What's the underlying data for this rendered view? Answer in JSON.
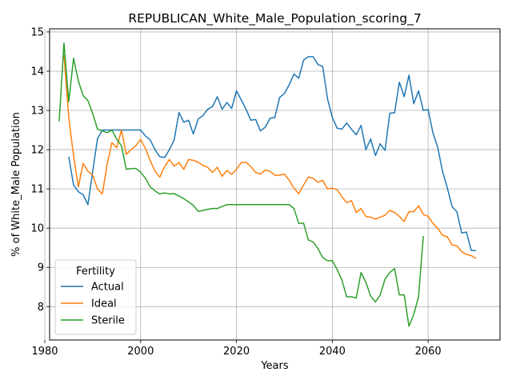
{
  "chart_data": {
    "type": "line",
    "title": "REPUBLICAN_White_Male_Population_scoring_7",
    "xlabel": "Years",
    "ylabel": "% of White_Male Population",
    "xlim": [
      1981,
      2075
    ],
    "ylim": [
      7.15,
      15.08
    ],
    "xticks": [
      1980,
      2000,
      2020,
      2040,
      2060
    ],
    "yticks": [
      8,
      9,
      10,
      11,
      12,
      13,
      14,
      15
    ],
    "grid": true,
    "legend": {
      "title": "Fertility",
      "placement": "lower-left"
    },
    "series": [
      {
        "name": "Actual",
        "color": "#1f77b4",
        "x": [
          1985,
          1986,
          1987,
          1988,
          1989,
          1990,
          1991,
          1992,
          1993,
          1994,
          1995,
          1996,
          1997,
          1998,
          1999,
          2000,
          2001,
          2002,
          2003,
          2004,
          2005,
          2006,
          2007,
          2008,
          2009,
          2010,
          2011,
          2012,
          2013,
          2014,
          2015,
          2016,
          2017,
          2018,
          2019,
          2020,
          2021,
          2022,
          2023,
          2024,
          2025,
          2026,
          2027,
          2028,
          2029,
          2030,
          2031,
          2032,
          2033,
          2034,
          2035,
          2036,
          2037,
          2038,
          2039,
          2040,
          2041,
          2042,
          2043,
          2044,
          2045,
          2046,
          2047,
          2048,
          2049,
          2050,
          2051,
          2052,
          2053,
          2054,
          2055,
          2056,
          2057,
          2058,
          2059,
          2060,
          2061,
          2062,
          2063,
          2064,
          2065,
          2066,
          2067,
          2068,
          2069,
          2070
        ],
        "values": [
          11.82,
          11.1,
          10.93,
          10.85,
          10.6,
          11.45,
          12.28,
          12.5,
          12.5,
          12.5,
          12.5,
          12.5,
          12.5,
          12.5,
          12.5,
          12.5,
          12.35,
          12.25,
          12.0,
          11.82,
          11.8,
          12.0,
          12.25,
          12.95,
          12.7,
          12.75,
          12.4,
          12.78,
          12.87,
          13.03,
          13.1,
          13.35,
          13.03,
          13.2,
          13.05,
          13.5,
          13.27,
          13.03,
          12.75,
          12.77,
          12.48,
          12.57,
          12.8,
          12.82,
          13.33,
          13.43,
          13.65,
          13.93,
          13.82,
          14.28,
          14.37,
          14.37,
          14.17,
          14.12,
          13.3,
          12.82,
          12.55,
          12.52,
          12.68,
          12.52,
          12.38,
          12.62,
          12.0,
          12.27,
          11.85,
          12.15,
          11.98,
          12.93,
          12.94,
          13.72,
          13.35,
          13.9,
          13.17,
          13.5,
          13.0,
          13.02,
          12.43,
          12.06,
          11.45,
          11.03,
          10.55,
          10.42,
          9.88,
          9.9,
          9.43,
          9.43
        ]
      },
      {
        "name": "Ideal",
        "color": "#ff7f0e",
        "x": [
          1984,
          1985,
          1986,
          1987,
          1988,
          1989,
          1990,
          1991,
          1992,
          1993,
          1994,
          1995,
          1996,
          1997,
          1998,
          1999,
          2000,
          2001,
          2002,
          2003,
          2004,
          2005,
          2006,
          2007,
          2008,
          2009,
          2010,
          2011,
          2012,
          2013,
          2014,
          2015,
          2016,
          2017,
          2018,
          2019,
          2020,
          2021,
          2022,
          2023,
          2024,
          2025,
          2026,
          2027,
          2028,
          2029,
          2030,
          2031,
          2032,
          2033,
          2034,
          2035,
          2036,
          2037,
          2038,
          2039,
          2040,
          2041,
          2042,
          2043,
          2044,
          2045,
          2046,
          2047,
          2048,
          2049,
          2050,
          2051,
          2052,
          2053,
          2054,
          2055,
          2056,
          2057,
          2058,
          2059,
          2060,
          2061,
          2062,
          2063,
          2064,
          2065,
          2066,
          2067,
          2068,
          2069,
          2070
        ],
        "values": [
          14.42,
          12.8,
          11.85,
          11.05,
          11.65,
          11.45,
          11.35,
          11.0,
          10.87,
          11.62,
          12.18,
          12.05,
          12.5,
          11.88,
          12.0,
          12.1,
          12.26,
          12.03,
          11.72,
          11.45,
          11.3,
          11.57,
          11.75,
          11.58,
          11.67,
          11.5,
          11.75,
          11.73,
          11.68,
          11.6,
          11.55,
          11.42,
          11.55,
          11.32,
          11.47,
          11.37,
          11.5,
          11.67,
          11.68,
          11.57,
          11.42,
          11.38,
          11.48,
          11.45,
          11.35,
          11.35,
          11.38,
          11.22,
          11.02,
          10.88,
          11.1,
          11.3,
          11.27,
          11.17,
          11.22,
          11.0,
          11.02,
          10.98,
          10.8,
          10.65,
          10.7,
          10.4,
          10.5,
          10.3,
          10.28,
          10.23,
          10.28,
          10.33,
          10.45,
          10.4,
          10.3,
          10.17,
          10.42,
          10.42,
          10.57,
          10.35,
          10.3,
          10.12,
          10.0,
          9.82,
          9.78,
          9.57,
          9.55,
          9.4,
          9.33,
          9.3,
          9.23
        ]
      },
      {
        "name": "Sterile",
        "color": "#2ca02c",
        "x": [
          1983,
          1984,
          1985,
          1986,
          1987,
          1988,
          1989,
          1990,
          1991,
          1992,
          1993,
          1994,
          1995,
          1996,
          1997,
          1998,
          1999,
          2000,
          2001,
          2002,
          2003,
          2004,
          2005,
          2006,
          2007,
          2008,
          2009,
          2010,
          2011,
          2012,
          2013,
          2014,
          2015,
          2016,
          2017,
          2018,
          2019,
          2020,
          2021,
          2022,
          2023,
          2024,
          2025,
          2026,
          2027,
          2028,
          2029,
          2030,
          2031,
          2032,
          2033,
          2034,
          2035,
          2036,
          2037,
          2038,
          2039,
          2040,
          2041,
          2042,
          2043,
          2044,
          2045,
          2046,
          2047,
          2048,
          2049,
          2050,
          2051,
          2052,
          2053,
          2054,
          2055,
          2056,
          2057,
          2058,
          2059
        ],
        "values": [
          12.72,
          14.72,
          13.22,
          14.33,
          13.75,
          13.38,
          13.25,
          12.92,
          12.52,
          12.48,
          12.43,
          12.5,
          12.27,
          12.1,
          11.5,
          11.52,
          11.52,
          11.43,
          11.27,
          11.05,
          10.95,
          10.87,
          10.9,
          10.87,
          10.88,
          10.82,
          10.75,
          10.67,
          10.58,
          10.43,
          10.45,
          10.48,
          10.5,
          10.5,
          10.55,
          10.6,
          10.6,
          10.6,
          10.6,
          10.6,
          10.6,
          10.6,
          10.6,
          10.6,
          10.6,
          10.6,
          10.6,
          10.6,
          10.6,
          10.5,
          10.12,
          10.13,
          9.7,
          9.65,
          9.48,
          9.25,
          9.17,
          9.17,
          8.95,
          8.68,
          8.25,
          8.25,
          8.22,
          8.87,
          8.62,
          8.27,
          8.12,
          8.3,
          8.7,
          8.87,
          8.97,
          8.3,
          8.3,
          7.5,
          7.8,
          8.25,
          9.8
        ]
      }
    ]
  }
}
